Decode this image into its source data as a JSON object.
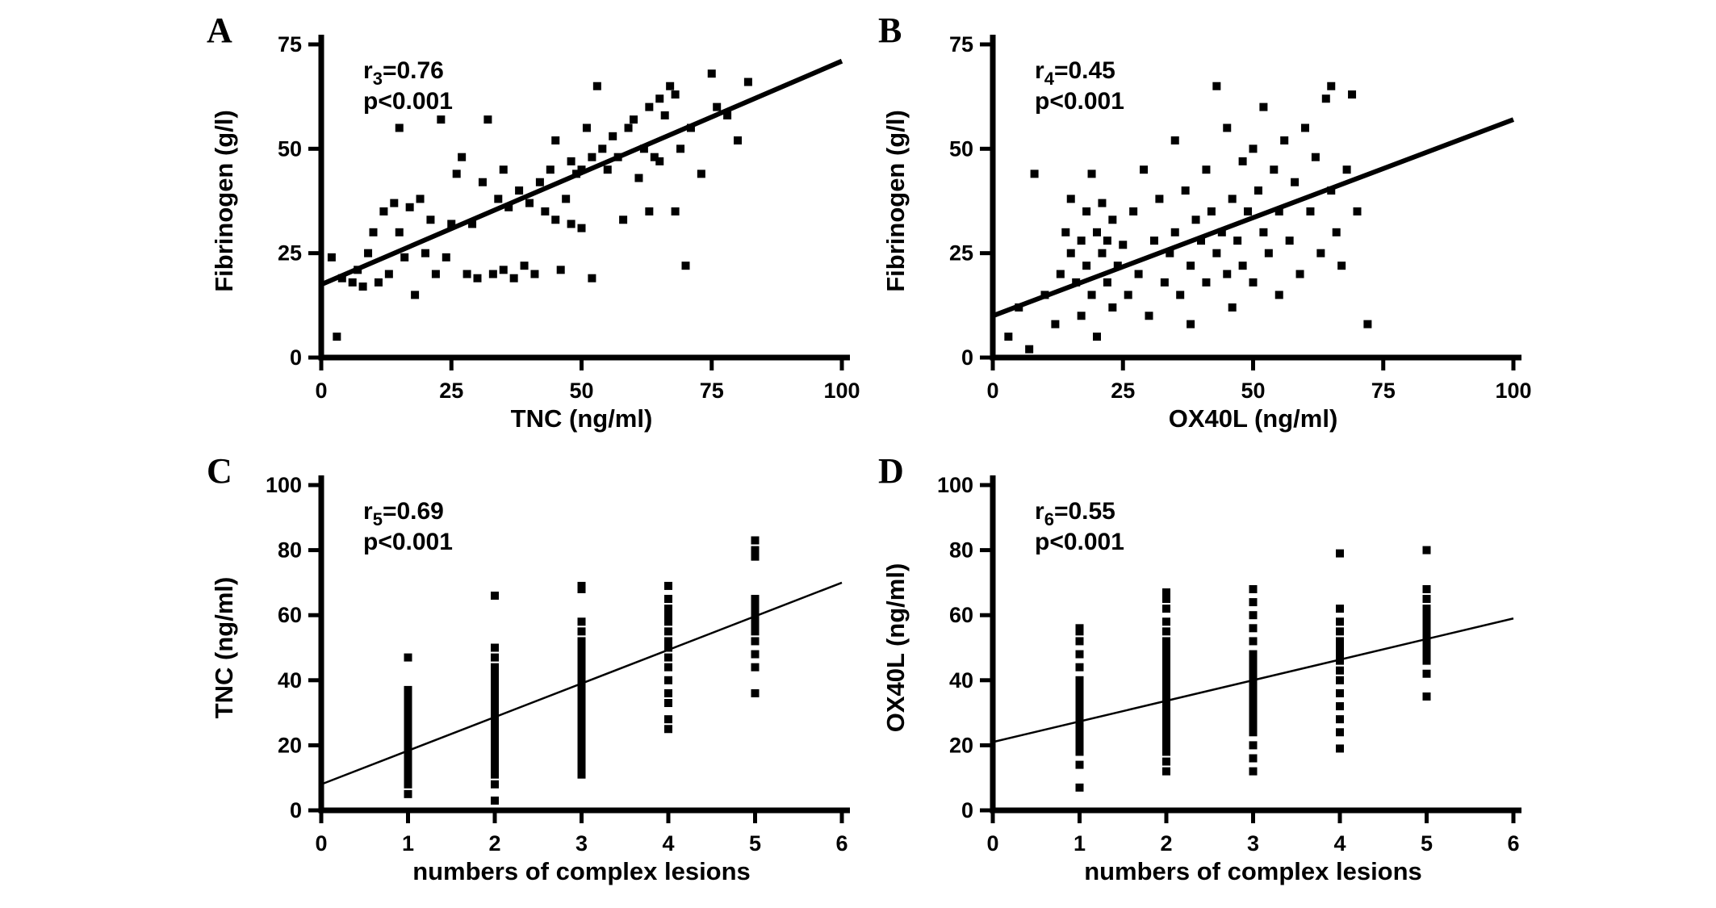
{
  "page": {
    "background": "#ffffff",
    "ink_color": "#000000"
  },
  "chart_data": [
    {
      "panel_label": "A",
      "type": "scatter",
      "xlabel": "TNC (ng/ml)",
      "ylabel": "Fibrinogen (g/l)",
      "xlim": [
        0,
        100
      ],
      "ylim": [
        0,
        75
      ],
      "xticks": [
        0,
        25,
        50,
        75,
        100
      ],
      "yticks": [
        0,
        25,
        50,
        75
      ],
      "annotation": {
        "r_symbol": "r",
        "r_subscript": "3",
        "r_equals": "=0.76",
        "p_value": "p<0.001"
      },
      "regression_line": {
        "x1": 0,
        "y1": 17.5,
        "x2": 100,
        "y2": 71,
        "style": "thick"
      },
      "marker": "square",
      "color": "#000000",
      "points": [
        [
          2,
          24
        ],
        [
          3,
          5
        ],
        [
          4,
          19
        ],
        [
          6,
          18
        ],
        [
          7,
          21
        ],
        [
          8,
          17
        ],
        [
          9,
          25
        ],
        [
          10,
          30
        ],
        [
          11,
          18
        ],
        [
          12,
          35
        ],
        [
          13,
          20
        ],
        [
          14,
          37
        ],
        [
          15,
          55
        ],
        [
          15,
          30
        ],
        [
          16,
          24
        ],
        [
          17,
          36
        ],
        [
          18,
          15
        ],
        [
          19,
          38
        ],
        [
          20,
          25
        ],
        [
          21,
          33
        ],
        [
          22,
          20
        ],
        [
          23,
          57
        ],
        [
          24,
          24
        ],
        [
          25,
          32
        ],
        [
          26,
          44
        ],
        [
          27,
          48
        ],
        [
          28,
          20
        ],
        [
          29,
          32
        ],
        [
          30,
          19
        ],
        [
          31,
          42
        ],
        [
          32,
          57
        ],
        [
          33,
          20
        ],
        [
          34,
          38
        ],
        [
          35,
          45
        ],
        [
          35,
          21
        ],
        [
          36,
          36
        ],
        [
          37,
          19
        ],
        [
          38,
          40
        ],
        [
          39,
          22
        ],
        [
          40,
          37
        ],
        [
          41,
          20
        ],
        [
          42,
          42
        ],
        [
          43,
          35
        ],
        [
          44,
          45
        ],
        [
          45,
          33
        ],
        [
          45,
          52
        ],
        [
          46,
          21
        ],
        [
          47,
          38
        ],
        [
          48,
          47
        ],
        [
          48,
          32
        ],
        [
          49,
          44
        ],
        [
          50,
          45
        ],
        [
          50,
          31
        ],
        [
          51,
          55
        ],
        [
          52,
          48
        ],
        [
          52,
          19
        ],
        [
          53,
          65
        ],
        [
          54,
          50
        ],
        [
          55,
          45
        ],
        [
          56,
          53
        ],
        [
          57,
          48
        ],
        [
          58,
          33
        ],
        [
          59,
          55
        ],
        [
          60,
          57
        ],
        [
          61,
          43
        ],
        [
          62,
          50
        ],
        [
          63,
          60
        ],
        [
          63,
          35
        ],
        [
          64,
          48
        ],
        [
          65,
          47
        ],
        [
          65,
          62
        ],
        [
          66,
          58
        ],
        [
          67,
          65
        ],
        [
          68,
          63
        ],
        [
          68,
          35
        ],
        [
          69,
          50
        ],
        [
          70,
          22
        ],
        [
          71,
          55
        ],
        [
          73,
          44
        ],
        [
          75,
          68
        ],
        [
          76,
          60
        ],
        [
          78,
          58
        ],
        [
          80,
          52
        ],
        [
          82,
          66
        ]
      ]
    },
    {
      "panel_label": "B",
      "type": "scatter",
      "xlabel": "OX40L (ng/ml)",
      "ylabel": "Fibrinogen (g/l)",
      "xlim": [
        0,
        100
      ],
      "ylim": [
        0,
        75
      ],
      "xticks": [
        0,
        25,
        50,
        75,
        100
      ],
      "yticks": [
        0,
        25,
        50,
        75
      ],
      "annotation": {
        "r_symbol": "r",
        "r_subscript": "4",
        "r_equals": "=0.45",
        "p_value": "p<0.001"
      },
      "regression_line": {
        "x1": 0,
        "y1": 10,
        "x2": 100,
        "y2": 57,
        "style": "thick"
      },
      "marker": "square",
      "color": "#000000",
      "points": [
        [
          3,
          5
        ],
        [
          5,
          12
        ],
        [
          7,
          2
        ],
        [
          8,
          44
        ],
        [
          10,
          15
        ],
        [
          12,
          8
        ],
        [
          13,
          20
        ],
        [
          14,
          30
        ],
        [
          15,
          25
        ],
        [
          15,
          38
        ],
        [
          16,
          18
        ],
        [
          17,
          28
        ],
        [
          17,
          10
        ],
        [
          18,
          35
        ],
        [
          18,
          22
        ],
        [
          19,
          15
        ],
        [
          19,
          44
        ],
        [
          20,
          30
        ],
        [
          20,
          5
        ],
        [
          21,
          25
        ],
        [
          21,
          37
        ],
        [
          22,
          18
        ],
        [
          22,
          28
        ],
        [
          23,
          12
        ],
        [
          23,
          33
        ],
        [
          24,
          22
        ],
        [
          25,
          27
        ],
        [
          26,
          15
        ],
        [
          27,
          35
        ],
        [
          28,
          20
        ],
        [
          29,
          45
        ],
        [
          30,
          10
        ],
        [
          31,
          28
        ],
        [
          32,
          38
        ],
        [
          33,
          18
        ],
        [
          34,
          25
        ],
        [
          35,
          52
        ],
        [
          35,
          30
        ],
        [
          36,
          15
        ],
        [
          37,
          40
        ],
        [
          38,
          22
        ],
        [
          38,
          8
        ],
        [
          39,
          33
        ],
        [
          40,
          28
        ],
        [
          41,
          18
        ],
        [
          41,
          45
        ],
        [
          42,
          35
        ],
        [
          43,
          25
        ],
        [
          43,
          65
        ],
        [
          44,
          30
        ],
        [
          45,
          20
        ],
        [
          45,
          55
        ],
        [
          46,
          38
        ],
        [
          46,
          12
        ],
        [
          47,
          28
        ],
        [
          48,
          47
        ],
        [
          48,
          22
        ],
        [
          49,
          35
        ],
        [
          50,
          50
        ],
        [
          50,
          18
        ],
        [
          51,
          40
        ],
        [
          52,
          30
        ],
        [
          52,
          60
        ],
        [
          53,
          25
        ],
        [
          54,
          45
        ],
        [
          55,
          35
        ],
        [
          55,
          15
        ],
        [
          56,
          52
        ],
        [
          57,
          28
        ],
        [
          58,
          42
        ],
        [
          59,
          20
        ],
        [
          60,
          55
        ],
        [
          61,
          35
        ],
        [
          62,
          48
        ],
        [
          63,
          25
        ],
        [
          64,
          62
        ],
        [
          65,
          40
        ],
        [
          65,
          65
        ],
        [
          66,
          30
        ],
        [
          67,
          22
        ],
        [
          68,
          45
        ],
        [
          69,
          63
        ],
        [
          70,
          35
        ],
        [
          72,
          8
        ]
      ]
    },
    {
      "panel_label": "C",
      "type": "scatter",
      "xlabel": "numbers of complex lesions",
      "ylabel": "TNC (ng/ml)",
      "xlim": [
        0,
        6
      ],
      "ylim": [
        0,
        100
      ],
      "xticks": [
        0,
        1,
        2,
        3,
        4,
        5,
        6
      ],
      "yticks": [
        0,
        20,
        40,
        60,
        80,
        100
      ],
      "annotation": {
        "r_symbol": "r",
        "r_subscript": "5",
        "r_equals": "=0.69",
        "p_value": "p<0.001"
      },
      "regression_line": {
        "x1": 0,
        "y1": 8,
        "x2": 6,
        "y2": 70,
        "style": "thin"
      },
      "marker": "square",
      "color": "#000000",
      "strips": [
        {
          "x": 1,
          "ys": [
            5,
            8,
            10,
            12,
            13,
            14,
            15,
            15,
            16,
            17,
            18,
            18,
            19,
            20,
            20,
            21,
            22,
            23,
            24,
            25,
            27,
            28,
            30,
            32,
            33,
            35,
            37,
            47
          ]
        },
        {
          "x": 2,
          "ys": [
            3,
            8,
            11,
            13,
            15,
            16,
            17,
            18,
            19,
            20,
            21,
            22,
            22,
            23,
            24,
            25,
            26,
            27,
            28,
            29,
            30,
            31,
            32,
            34,
            36,
            38,
            40,
            42,
            44,
            47,
            50,
            66
          ]
        },
        {
          "x": 3,
          "ys": [
            11,
            13,
            15,
            17,
            19,
            21,
            23,
            25,
            27,
            28,
            30,
            31,
            32,
            33,
            34,
            35,
            36,
            37,
            38,
            39,
            40,
            42,
            44,
            46,
            48,
            50,
            52,
            55,
            58,
            68,
            69
          ]
        },
        {
          "x": 4,
          "ys": [
            25,
            28,
            33,
            36,
            40,
            44,
            47,
            50,
            52,
            55,
            58,
            60,
            62,
            65,
            69
          ]
        },
        {
          "x": 5,
          "ys": [
            36,
            44,
            48,
            52,
            55,
            57,
            58,
            60,
            62,
            63,
            65,
            78,
            80,
            83
          ]
        }
      ]
    },
    {
      "panel_label": "D",
      "type": "scatter",
      "xlabel": "numbers of complex lesions",
      "ylabel": "OX40L (ng/ml)",
      "xlim": [
        0,
        6
      ],
      "ylim": [
        0,
        100
      ],
      "xticks": [
        0,
        1,
        2,
        3,
        4,
        5,
        6
      ],
      "yticks": [
        0,
        20,
        40,
        60,
        80,
        100
      ],
      "annotation": {
        "r_symbol": "r",
        "r_subscript": "6",
        "r_equals": "=0.55",
        "p_value": "p<0.001"
      },
      "regression_line": {
        "x1": 0,
        "y1": 21,
        "x2": 6,
        "y2": 59,
        "style": "thin"
      },
      "marker": "square",
      "color": "#000000",
      "strips": [
        {
          "x": 1,
          "ys": [
            7,
            14,
            18,
            20,
            22,
            24,
            26,
            28,
            30,
            32,
            34,
            36,
            38,
            40,
            44,
            48,
            52,
            55,
            56
          ]
        },
        {
          "x": 2,
          "ys": [
            12,
            15,
            18,
            20,
            22,
            24,
            26,
            28,
            30,
            32,
            33,
            34,
            36,
            38,
            40,
            42,
            44,
            46,
            48,
            50,
            52,
            55,
            58,
            62,
            65,
            67
          ]
        },
        {
          "x": 3,
          "ys": [
            12,
            16,
            20,
            24,
            26,
            28,
            30,
            32,
            34,
            36,
            38,
            40,
            42,
            44,
            46,
            48,
            52,
            56,
            60,
            64,
            68
          ]
        },
        {
          "x": 4,
          "ys": [
            19,
            24,
            28,
            32,
            36,
            40,
            43,
            46,
            48,
            50,
            52,
            55,
            58,
            62,
            79
          ]
        },
        {
          "x": 5,
          "ys": [
            35,
            42,
            46,
            48,
            50,
            52,
            54,
            56,
            58,
            60,
            62,
            65,
            68,
            80
          ]
        }
      ]
    }
  ]
}
